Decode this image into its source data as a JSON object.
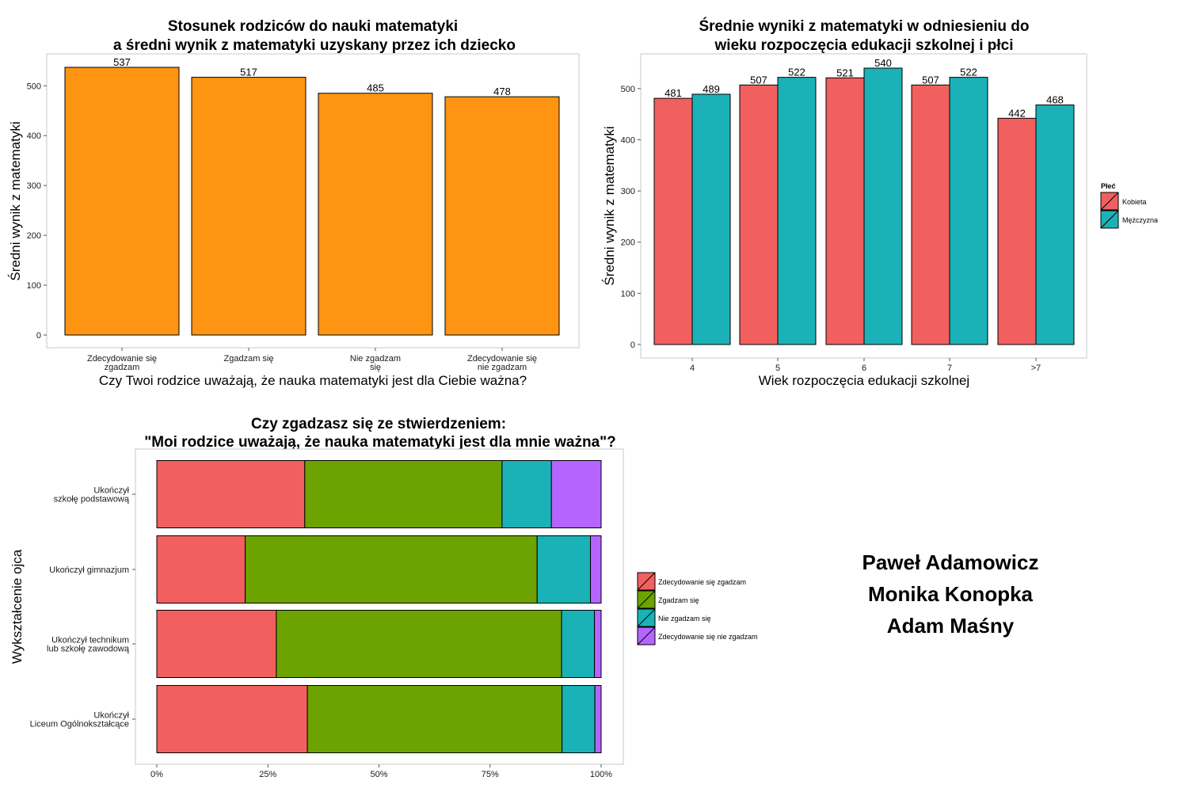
{
  "chart_data": [
    {
      "type": "bar",
      "title": [
        "Stosunek rodziców do nauki matematyki",
        "a średni wynik z matematyki uzyskany przez ich dziecko"
      ],
      "xlabel": "Czy Twoi rodzice uważają, że nauka matematyki jest dla Ciebie ważna?",
      "ylabel": "Średni wynik z matematyki",
      "categories": [
        [
          "Zdecydowanie się",
          "zgadzam"
        ],
        [
          "Zgadzam się"
        ],
        [
          "Nie zgadzam",
          "się"
        ],
        [
          "Zdecydowanie się",
          "nie zgadzam"
        ]
      ],
      "values": [
        537,
        517,
        485,
        478
      ],
      "ylim": [
        0,
        560
      ],
      "yticks": [
        0,
        100,
        200,
        300,
        400,
        500
      ],
      "color": "#ff9412",
      "grid": false
    },
    {
      "type": "bar",
      "title": [
        "Średnie wyniki z matematyki w odniesieniu do",
        "wieku rozpoczęcia edukacji szkolnej i płci"
      ],
      "xlabel": "Wiek rozpoczęcia edukacji szkolnej",
      "ylabel": "Średni wynik z matematyki",
      "categories": [
        "4",
        "5",
        "6",
        "7",
        ">7"
      ],
      "series": [
        {
          "name": "Kobieta",
          "values": [
            481,
            507,
            521,
            507,
            442
          ],
          "color": "#f15f5f"
        },
        {
          "name": "Mężczyzna",
          "values": [
            489,
            522,
            540,
            522,
            468
          ],
          "color": "#1ab2b6"
        }
      ],
      "legend_title": "Płeć",
      "legend_position": "right",
      "ylim": [
        0,
        565
      ],
      "yticks": [
        0,
        100,
        200,
        300,
        400,
        500
      ],
      "grid": false
    },
    {
      "type": "bar",
      "orientation": "horizontal",
      "stacked": "percent",
      "title": [
        "Czy zgadzasz się ze stwierdzeniem:",
        "\"Moi rodzice uważają, że nauka matematyki jest dla mnie ważna\"?"
      ],
      "ylabel": "Wykształcenie ojca",
      "categories": [
        [
          "Ukończył",
          "szkołę podstawową"
        ],
        [
          "Ukończył gimnazjum"
        ],
        [
          "Ukończył technikum",
          "lub szkołę zawodową"
        ],
        [
          "Ukończył",
          "Liceum Ogólnokształcące"
        ]
      ],
      "series": [
        {
          "name": "Zdecydowanie się zgadzam",
          "values": [
            33.3,
            19.9,
            26.9,
            33.9
          ],
          "color": "#f15f5f"
        },
        {
          "name": "Zgadzam się",
          "values": [
            44.4,
            65.7,
            64.2,
            57.3
          ],
          "color": "#6ca300"
        },
        {
          "name": "Nie zgadzam się",
          "values": [
            11.1,
            12.0,
            7.4,
            7.4
          ],
          "color": "#1ab2b6"
        },
        {
          "name": "Zdecydowanie się nie zgadzam",
          "values": [
            11.2,
            2.4,
            1.5,
            1.4
          ],
          "color": "#b565ff"
        }
      ],
      "xticks": [
        "0%",
        "25%",
        "50%",
        "75%",
        "100%"
      ],
      "legend_position": "right",
      "grid": false
    }
  ],
  "authors": [
    "Paweł Adamowicz",
    "Monika Konopka",
    "Adam Maśny"
  ]
}
